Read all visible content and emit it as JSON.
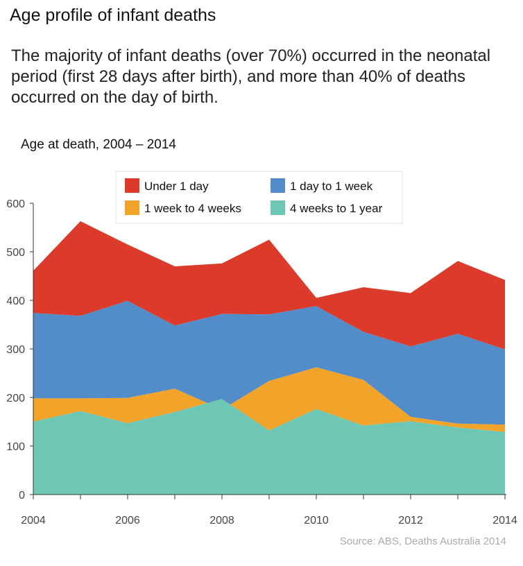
{
  "header": {
    "title": "Age profile of infant deaths",
    "subtitle": "The majority of infant deaths (over 70%) occurred in the neonatal period (first 28 days after birth), and more than 40% of deaths occurred on the day of birth."
  },
  "footer": {
    "source": "Source: ABS, Deaths Australia 2014"
  },
  "chart_data": {
    "type": "area",
    "stacked": true,
    "title": "Age at death, 2004 – 2014",
    "x": [
      2004,
      2005,
      2006,
      2007,
      2008,
      2009,
      2010,
      2011,
      2012,
      2013,
      2014
    ],
    "x_ticks": [
      2004,
      2006,
      2008,
      2010,
      2012,
      2014
    ],
    "y_ticks": [
      0,
      100,
      200,
      300,
      400,
      500,
      600
    ],
    "ylim": [
      0,
      600
    ],
    "xlabel": "",
    "ylabel": "",
    "grid": false,
    "legend_position": "top",
    "series": [
      {
        "name": "4 weeks to 1 year",
        "color": "#6ec7b4",
        "values": [
          150,
          172,
          147,
          170,
          197,
          132,
          176,
          142,
          151,
          138,
          129
        ]
      },
      {
        "name": "1 week to 4 weeks",
        "color": "#f2a42a",
        "values": [
          48,
          26,
          52,
          48,
          -22,
          102,
          86,
          94,
          9,
          8,
          15
        ]
      },
      {
        "name": "1 day to 1 week",
        "color": "#528cc9",
        "values": [
          176,
          170,
          200,
          130,
          197,
          137,
          126,
          99,
          145,
          185,
          155
        ]
      },
      {
        "name": "Under 1 day",
        "color": "#dc3a2a",
        "values": [
          87,
          195,
          116,
          122,
          104,
          154,
          17,
          92,
          110,
          150,
          143
        ]
      }
    ],
    "legend_order": [
      "Under 1 day",
      "1 day to 1 week",
      "1 week to 4 weeks",
      "4 weeks to 1 year"
    ]
  }
}
